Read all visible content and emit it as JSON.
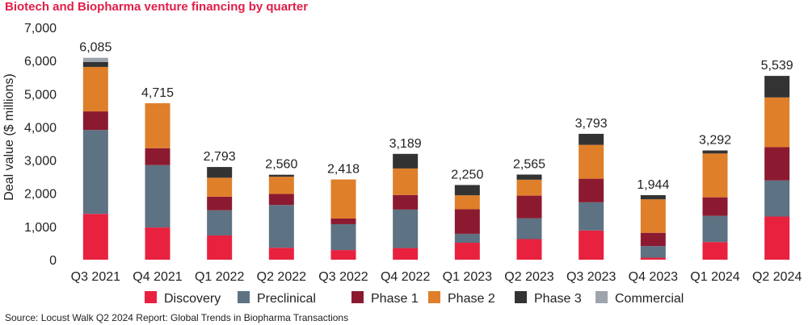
{
  "chart_data": {
    "type": "bar",
    "stacked": true,
    "title": "Biotech and Biopharma venture financing by quarter",
    "ylabel": "Deal value ($ millions)",
    "xlabel": "",
    "ylim": [
      0,
      7000
    ],
    "yticks": [
      0,
      1000,
      2000,
      3000,
      4000,
      5000,
      6000,
      7000
    ],
    "ytick_labels": [
      "0",
      "1,000",
      "2,000",
      "3,000",
      "4,000",
      "5,000",
      "6,000",
      "7,000"
    ],
    "grid": false,
    "legend_position": "bottom",
    "categories": [
      "Q3 2021",
      "Q4 2021",
      "Q1 2022",
      "Q2 2022",
      "Q3 2022",
      "Q4 2022",
      "Q1 2023",
      "Q2 2023",
      "Q3 2023",
      "Q4 2023",
      "Q1 2024",
      "Q2 2024"
    ],
    "totals": [
      6085,
      4715,
      2793,
      2560,
      2418,
      3189,
      2250,
      2565,
      3793,
      1944,
      3292,
      5539
    ],
    "total_labels": [
      "6,085",
      "4,715",
      "2,793",
      "2,560",
      "2,418",
      "3,189",
      "2,250",
      "2,565",
      "3,793",
      "1,944",
      "3,292",
      "5,539"
    ],
    "series": [
      {
        "name": "Discovery",
        "color": "#e8213f",
        "values": [
          1380,
          970,
          730,
          360,
          290,
          350,
          510,
          620,
          880,
          60,
          530,
          1300
        ]
      },
      {
        "name": "Preclinical",
        "color": "#5d7282",
        "values": [
          2530,
          1880,
          760,
          1290,
          780,
          1160,
          270,
          630,
          850,
          350,
          790,
          1090
        ]
      },
      {
        "name": "Phase 1",
        "color": "#8b1a31",
        "values": [
          560,
          510,
          410,
          330,
          170,
          440,
          740,
          680,
          710,
          400,
          560,
          1000
        ]
      },
      {
        "name": "Phase 2",
        "color": "#df7f2a",
        "values": [
          1340,
          1355,
          570,
          520,
          1178,
          799,
          420,
          480,
          1020,
          1010,
          1320,
          1500
        ]
      },
      {
        "name": "Phase 3",
        "color": "#333333",
        "values": [
          145,
          0,
          323,
          60,
          0,
          440,
          310,
          155,
          333,
          124,
          92,
          649
        ]
      },
      {
        "name": "Commercial",
        "color": "#9ea4ab",
        "values": [
          130,
          0,
          0,
          0,
          0,
          0,
          0,
          0,
          0,
          0,
          0,
          0
        ]
      }
    ]
  },
  "source": "Source: Locust Walk Q2 2024 Report: Global Trends in Biopharma Transactions"
}
